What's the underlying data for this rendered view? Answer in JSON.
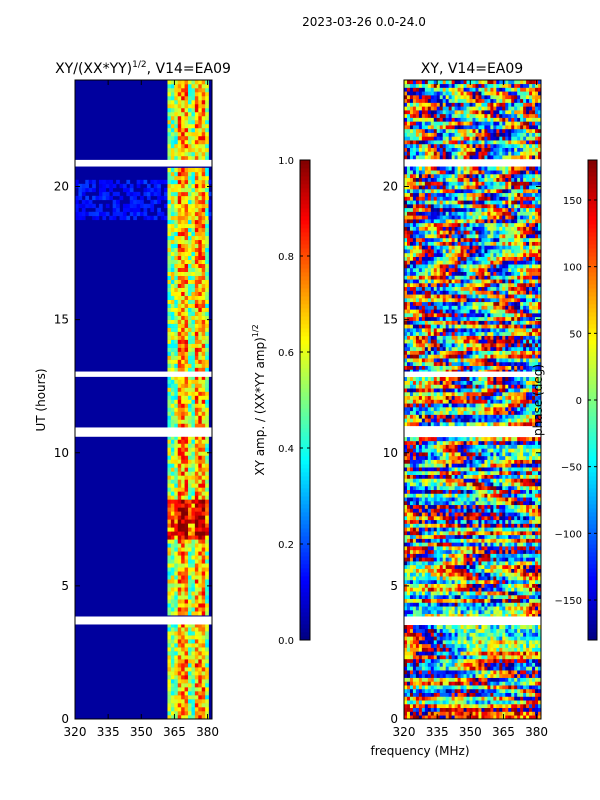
{
  "suptitle": "2023-03-26 0.0-24.0",
  "shared_xlabel": "frequency (MHz)",
  "colors": {
    "nodata": "#ffffff",
    "low": "#00007f",
    "high": "#7f0000"
  },
  "chart_data": [
    {
      "type": "heatmap",
      "title": "XY/(XX*YY)",
      "title_sup": "1/2",
      "title_suffix": ", V14=EA09",
      "xlabel": "",
      "ylabel": "UT (hours)",
      "xlim": [
        320,
        382
      ],
      "ylim": [
        0,
        24
      ],
      "xticks": [
        320,
        335,
        350,
        365,
        380
      ],
      "yticks": [
        0,
        5,
        10,
        15,
        20
      ],
      "colorbar": {
        "label": "XY amp. / (XX*YY amp)",
        "label_sup": "1/2",
        "range": [
          0.0,
          1.0
        ],
        "ticks": [
          "0.0",
          "0.2",
          "0.4",
          "0.6",
          "0.8",
          "1.0"
        ],
        "tick_values": [
          0.0,
          0.2,
          0.4,
          0.6,
          0.8,
          1.0
        ]
      },
      "background_value": 0.03,
      "bright_band_mhz": [
        362,
        381
      ],
      "gap_hours": [
        [
          3.55,
          3.85
        ],
        [
          10.6,
          10.95
        ],
        [
          12.85,
          13.05
        ],
        [
          20.75,
          21.0
        ]
      ]
    },
    {
      "type": "heatmap",
      "title": "XY, V14=EA09",
      "xlabel": "frequency (MHz)",
      "ylabel": "",
      "xlim": [
        320,
        382
      ],
      "ylim": [
        0,
        24
      ],
      "xticks": [
        320,
        335,
        350,
        365,
        380
      ],
      "yticks": [
        0,
        5,
        10,
        15,
        20
      ],
      "colorbar": {
        "label": "phase (deg)",
        "range": [
          -180,
          180
        ],
        "ticks": [
          "−150",
          "−100",
          "−50",
          "0",
          "50",
          "100",
          "150"
        ],
        "tick_values": [
          -150,
          -100,
          -50,
          0,
          50,
          100,
          150
        ]
      },
      "gap_hours": [
        [
          3.55,
          3.85
        ],
        [
          10.6,
          10.95
        ],
        [
          12.85,
          13.05
        ],
        [
          20.75,
          21.0
        ]
      ]
    }
  ]
}
